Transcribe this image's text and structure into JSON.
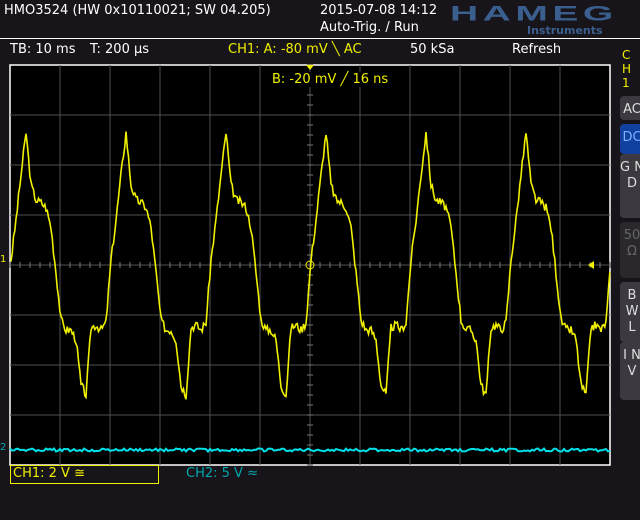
{
  "header": {
    "model": "HMO3524 (HW 0x10110021; SW 04.205)",
    "datetime": "2015-07-08 14:12",
    "trigger_state": "Auto-Trig. / Run",
    "logo": "HAMEG",
    "logo_sub": "Instruments"
  },
  "status": {
    "timebase": "TB: 10 ms",
    "trigger_time": "T: 200 µs",
    "ch1_trigger_a": "CH1:  A: -80 mV ╲ AC",
    "sample_rate": "50 kSa",
    "mode": "Refresh",
    "trigger_b": "B: -20 mV ╱ 16 ns"
  },
  "side_menu": {
    "channel": "C\nH\n1",
    "buttons": [
      {
        "label": "AC",
        "active": false
      },
      {
        "label": "DC",
        "active": true
      },
      {
        "label": "G N D",
        "active": false
      },
      {
        "label": "50 Ω",
        "active": false,
        "disabled": true
      },
      {
        "label": "B W L",
        "active": false
      },
      {
        "label": "I N V",
        "active": false
      }
    ]
  },
  "footer": {
    "ch1_scale": "CH1: 2 V ≅",
    "ch2_scale": "CH2: 5 V ≈"
  },
  "markers": {
    "ch1": "1",
    "ch2": "2"
  },
  "colors": {
    "ch1": "#f0f000",
    "ch2": "#00e0e8",
    "grid": "#505050",
    "accent": "#1040a0"
  },
  "chart_data": {
    "type": "line",
    "grid": true,
    "x_divisions": 12,
    "y_divisions": 8,
    "x_per_div_ms": 10,
    "y_per_div_V": 2,
    "series": [
      {
        "name": "CH1",
        "period_ms": 20,
        "periods": 6,
        "start_ms": -60,
        "t_ms": [
          0,
          1,
          2,
          3,
          4,
          5,
          6,
          7,
          8,
          9,
          10,
          11,
          12,
          13,
          14,
          15,
          16,
          17,
          18,
          19,
          20
        ],
        "v": [
          0.2,
          1.8,
          3.6,
          5.3,
          3.2,
          2.6,
          2.5,
          2.3,
          1.5,
          -0.3,
          -2.2,
          -2.6,
          -2.6,
          -3.0,
          -4.8,
          -5.2,
          -2.5,
          -2.4,
          -2.6,
          -2.3,
          0.2
        ]
      },
      {
        "name": "CH2",
        "offset_div": -3.7,
        "level_V": 0
      }
    ]
  }
}
